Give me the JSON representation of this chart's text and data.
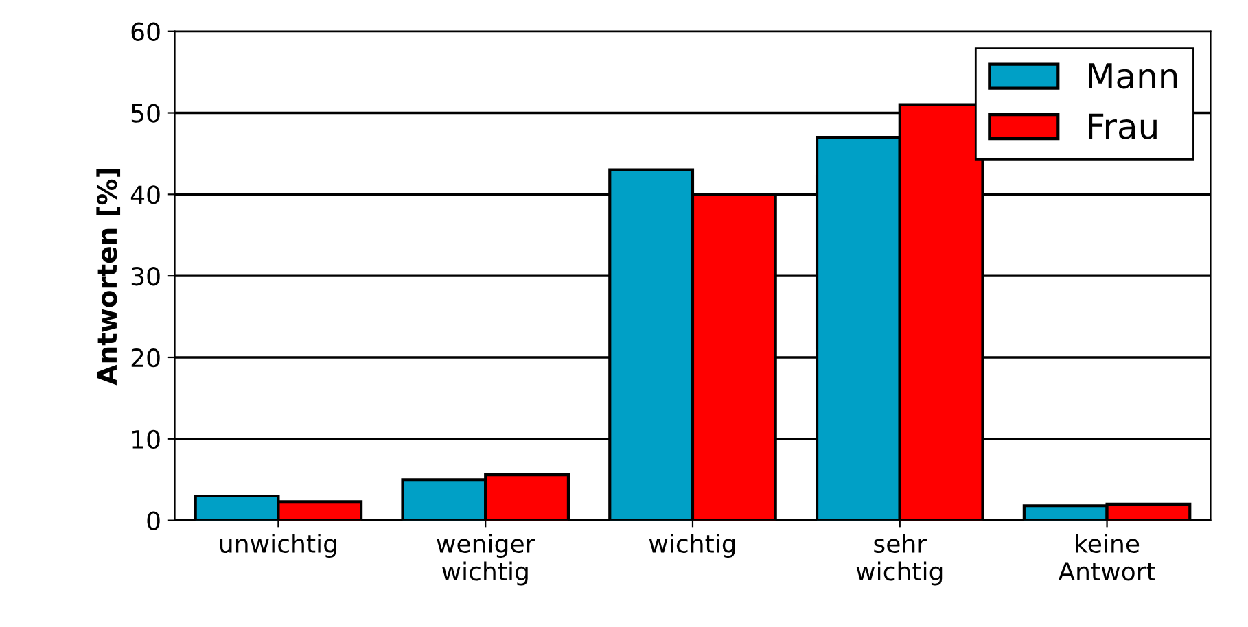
{
  "chart_data": {
    "type": "bar",
    "ylabel": "Antworten [%]",
    "categories": [
      "unwichtig",
      "weniger\nwichtig",
      "wichtig",
      "sehr\nwichtig",
      "keine\nAntwort"
    ],
    "series": [
      {
        "name": "Mann",
        "color": "#00a0c6",
        "values": [
          3,
          5,
          43,
          47,
          1.8
        ]
      },
      {
        "name": "Frau",
        "color": "#ff0000",
        "values": [
          2.3,
          5.6,
          40,
          51,
          2
        ]
      }
    ],
    "ylim": [
      0,
      60
    ],
    "yticks": [
      0,
      10,
      20,
      30,
      40,
      50,
      60
    ],
    "grid": "y",
    "legend": "top right"
  }
}
